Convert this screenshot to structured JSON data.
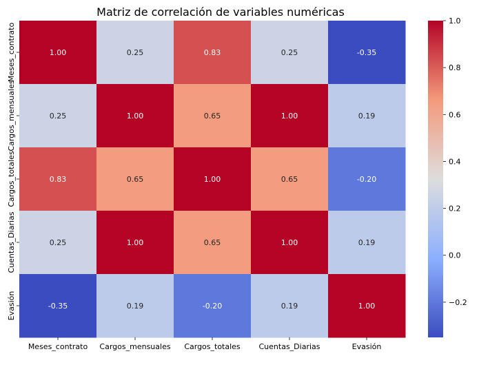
{
  "chart_data": {
    "type": "heatmap",
    "title": "Matriz de correlación de variables numéricas",
    "x_categories": [
      "Meses_contrato",
      "Cargos_mensuales",
      "Cargos_totales",
      "Cuentas_Diarias",
      "Evasión"
    ],
    "y_categories": [
      "Meses_contrato",
      "Cargos_mensuales",
      "Cargos_totales",
      "Cuentas_Diarias",
      "Evasión"
    ],
    "values": [
      [
        1.0,
        0.25,
        0.83,
        0.25,
        -0.35
      ],
      [
        0.25,
        1.0,
        0.65,
        1.0,
        0.19
      ],
      [
        0.83,
        0.65,
        1.0,
        0.65,
        -0.2
      ],
      [
        0.25,
        1.0,
        0.65,
        1.0,
        0.19
      ],
      [
        -0.35,
        0.19,
        -0.2,
        0.19,
        1.0
      ]
    ],
    "annotation_format": "2 decimals",
    "colormap": "coolwarm",
    "color_range": [
      -0.35,
      1.0
    ],
    "colorbar_ticks": [
      1.0,
      0.8,
      0.6,
      0.4,
      0.2,
      0.0,
      -0.2
    ],
    "colorbar_tick_labels": [
      "1.0",
      "0.8",
      "0.6",
      "0.4",
      "0.2",
      "0.0",
      "−0.2"
    ],
    "colors": {
      "low": "#3b4cc0",
      "mid": "#dddddd",
      "high": "#b40426",
      "dark_text": "#262626",
      "light_text": "#ffffff"
    }
  }
}
